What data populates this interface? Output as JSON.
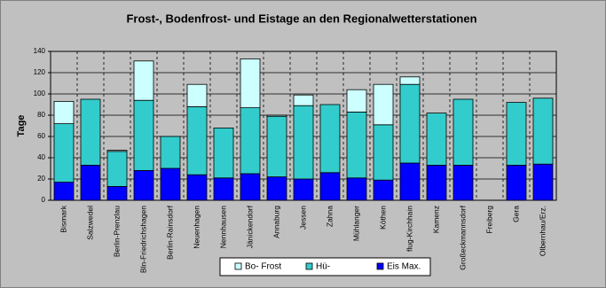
{
  "chart_data": {
    "type": "bar",
    "stacked": true,
    "title": "Frost-, Bodenfrost- und Eistage an den Regionalwetterstationen",
    "y_label": "Tage",
    "categories": [
      "Bismark",
      "Salzwedel",
      "Berlin-Prenzlau",
      "Bln-Friedrichshagen",
      "Berlin-Rainsdorf",
      "Neuenhagen",
      "Nennhausen",
      "Jänickendorf",
      "Annaburg",
      "Jessen",
      "Zahna",
      "Mühlanger",
      "Köthen",
      "flug-Kirchhain",
      "Kamenz",
      "Großeckmannsdorf",
      "Freiberg",
      "Gera",
      "Olbernhau/Erz."
    ],
    "series": [
      {
        "name": "Bo- Frost",
        "color": "#ccffff",
        "values": [
          21,
          0,
          1,
          37,
          0,
          21,
          0,
          46,
          1,
          10,
          0,
          21,
          38,
          7,
          0,
          0,
          null,
          0,
          0
        ]
      },
      {
        "name": "Hü-",
        "color": "#33cccc",
        "values": [
          55,
          62,
          33,
          66,
          30,
          64,
          47,
          62,
          57,
          69,
          64,
          62,
          52,
          74,
          49,
          62,
          null,
          59,
          62
        ]
      },
      {
        "name": "Eis Max.",
        "color": "#0000ff",
        "values": [
          17,
          33,
          13,
          28,
          30,
          24,
          21,
          25,
          22,
          20,
          26,
          21,
          19,
          35,
          33,
          33,
          null,
          33,
          34
        ]
      }
    ],
    "ylim": [
      0,
      140
    ],
    "yticks": [
      0,
      20,
      40,
      60,
      80,
      100,
      120,
      140
    ],
    "grid": true
  }
}
